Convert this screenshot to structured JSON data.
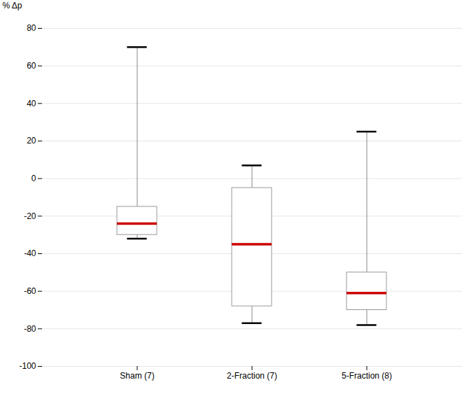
{
  "chart_data": {
    "type": "box",
    "categories": [
      "Sham (7)",
      "2-Fraction (7)",
      "5-Fraction (8)"
    ],
    "boxes": [
      {
        "whisker_high": 70,
        "q3": -15,
        "median": -24,
        "q1": -30,
        "whisker_low": -32
      },
      {
        "whisker_high": 7,
        "q3": -5,
        "median": -35,
        "q1": -68,
        "whisker_low": -77
      },
      {
        "whisker_high": 25,
        "q3": -50,
        "median": -61,
        "q1": -70,
        "whisker_low": -78
      }
    ],
    "ylabel": "% Δp",
    "ylim": [
      -100,
      80
    ],
    "yticks": [
      -100,
      -80,
      -60,
      -40,
      -20,
      0,
      20,
      40,
      60,
      80
    ],
    "grid": true,
    "color": "#cc0000"
  }
}
